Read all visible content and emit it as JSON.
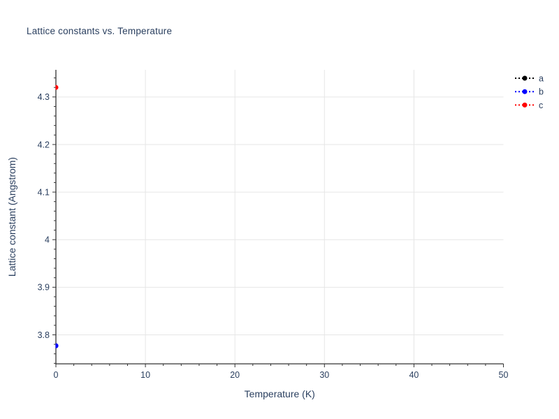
{
  "page": {
    "background_color": "#ffffff",
    "text_color": "#2a3f5f",
    "grid_color": "#e6e6e6",
    "axis_color": "#333333"
  },
  "chart_data": {
    "type": "scatter",
    "title": "Lattice constants vs. Temperature",
    "xlabel": "Temperature (K)",
    "ylabel": "Lattice constant (Angstrom)",
    "xlim": [
      0,
      50
    ],
    "ylim": [
      3.739,
      4.357
    ],
    "x_ticks_major": [
      0,
      10,
      20,
      30,
      40,
      50
    ],
    "x_minor_step": 2,
    "y_ticks_major": [
      3.8,
      3.9,
      4,
      4.1,
      4.2,
      4.3
    ],
    "y_minor_step": 0.02,
    "grid": true,
    "legend_position": "top-right-outside",
    "legend_entries": [
      "a",
      "b",
      "c"
    ],
    "series": [
      {
        "name": "a",
        "color": "#000000",
        "line_style": "dotted",
        "marker": "circle",
        "points": [
          [
            0,
            3.777
          ]
        ]
      },
      {
        "name": "b",
        "color": "#0000ff",
        "line_style": "dotted",
        "marker": "circle",
        "points": [
          [
            0,
            3.777
          ]
        ]
      },
      {
        "name": "c",
        "color": "#ff0000",
        "line_style": "dotted",
        "marker": "circle",
        "points": [
          [
            0,
            4.32
          ]
        ]
      }
    ]
  }
}
